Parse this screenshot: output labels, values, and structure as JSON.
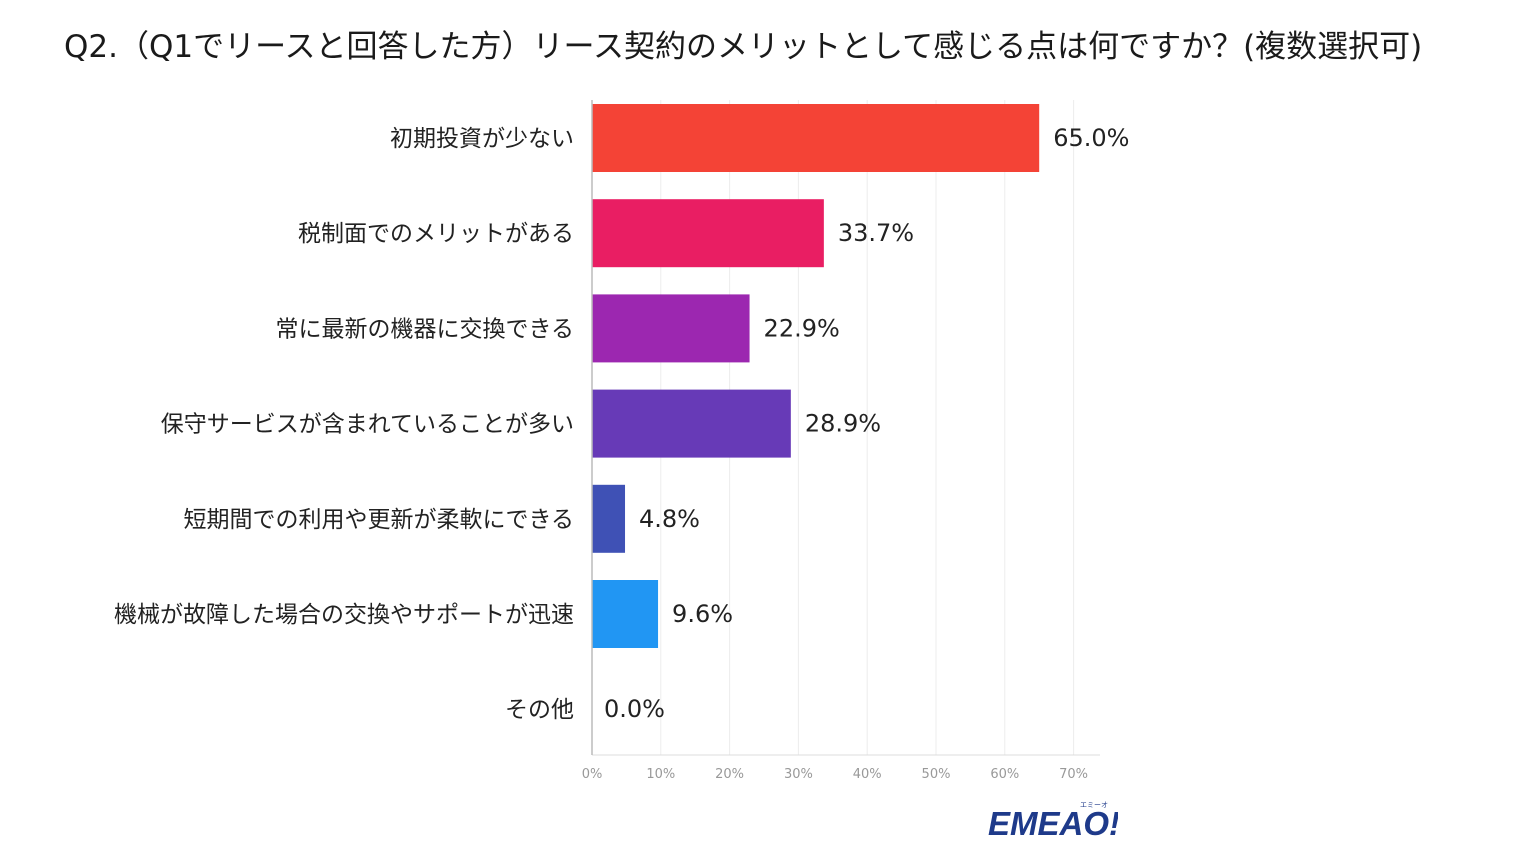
{
  "title": "Q2.（Q1でリースと回答した方）リース契約のメリットとして感じる点は何ですか？(複数選択可)",
  "chart_data": {
    "type": "bar",
    "orientation": "horizontal",
    "title": "Q2.（Q1でリースと回答した方）リース契約のメリットとして感じる点は何ですか？(複数選択可)",
    "categories": [
      "初期投資が少ない",
      "税制面でのメリットがある",
      "常に最新の機器に交換できる",
      "保守サービスが含まれていることが多い",
      "短期間での利用や更新が柔軟にできる",
      "機械が故障した場合の交換やサポートが迅速",
      "その他"
    ],
    "values": [
      65.0,
      33.7,
      22.9,
      28.9,
      4.8,
      9.6,
      0.0
    ],
    "value_labels": [
      "65.0%",
      "33.7%",
      "22.9%",
      "28.9%",
      "4.8%",
      "9.6%",
      "0.0%"
    ],
    "colors": [
      "#f44336",
      "#e91e63",
      "#9c27b0",
      "#673ab7",
      "#3f51b5",
      "#2196f3",
      "#03a9f4"
    ],
    "xlim": [
      0,
      70
    ],
    "xticks": [
      0,
      10,
      20,
      30,
      40,
      50,
      60,
      70
    ],
    "xtick_labels": [
      "0%",
      "10%",
      "20%",
      "30%",
      "40%",
      "50%",
      "60%",
      "70%"
    ],
    "xlabel": "",
    "ylabel": "",
    "grid": true
  },
  "logo": {
    "text": "EMEAO!",
    "subtext": "エミーオ",
    "colors": {
      "main": "#1e3a8a",
      "accent": "#f5b800"
    }
  }
}
